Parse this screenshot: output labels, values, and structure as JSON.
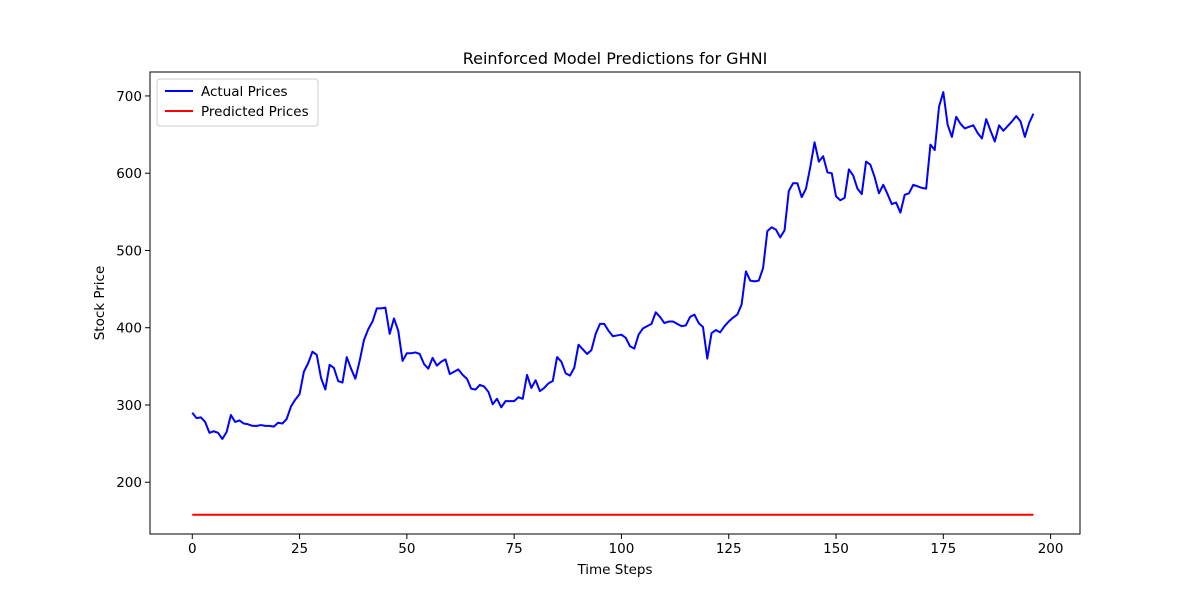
{
  "chart_data": {
    "type": "line",
    "title": "Reinforced Model Predictions for GHNI",
    "xlabel": "Time Steps",
    "ylabel": "Stock Price",
    "xlim": [
      -9.85,
      206.85
    ],
    "ylim": [
      133,
      731
    ],
    "xticks": [
      0,
      25,
      50,
      75,
      100,
      125,
      150,
      175,
      200
    ],
    "yticks": [
      200,
      300,
      400,
      500,
      600,
      700
    ],
    "grid": false,
    "legend": {
      "placement": "top-left",
      "entries": [
        "Actual Prices",
        "Predicted Prices"
      ]
    },
    "series": [
      {
        "name": "Actual Prices",
        "color": "#0000ff",
        "x_start": 0,
        "values": [
          290,
          283,
          284,
          278,
          264,
          266,
          264,
          256,
          265,
          287,
          278,
          280,
          276,
          275,
          273,
          273,
          274,
          273,
          273,
          272,
          277,
          276,
          282,
          298,
          307,
          314,
          343,
          354,
          369,
          365,
          335,
          320,
          352,
          348,
          331,
          329,
          362,
          347,
          334,
          357,
          384,
          398,
          408,
          425,
          425,
          426,
          392,
          412,
          396,
          357,
          367,
          367,
          368,
          366,
          353,
          347,
          361,
          351,
          356,
          359,
          340,
          343,
          346,
          339,
          334,
          321,
          320,
          326,
          324,
          317,
          301,
          308,
          297,
          305,
          305,
          305,
          310,
          308,
          339,
          322,
          332,
          318,
          322,
          328,
          331,
          362,
          356,
          341,
          338,
          348,
          378,
          372,
          366,
          371,
          392,
          405,
          405,
          396,
          389,
          390,
          391,
          387,
          376,
          373,
          391,
          399,
          402,
          405,
          420,
          414,
          406,
          408,
          408,
          405,
          402,
          403,
          414,
          417,
          406,
          401,
          360,
          393,
          397,
          394,
          402,
          408,
          413,
          417,
          430,
          473,
          461,
          460,
          461,
          477,
          525,
          530,
          527,
          517,
          526,
          577,
          587,
          587,
          569,
          580,
          608,
          640,
          615,
          622,
          601,
          600,
          570,
          565,
          568,
          605,
          597,
          580,
          573,
          615,
          611,
          595,
          574,
          585,
          573,
          560,
          562,
          549,
          572,
          574,
          585,
          583,
          581,
          580,
          637,
          630,
          686,
          705,
          663,
          647,
          673,
          664,
          658,
          660,
          662,
          652,
          645,
          670,
          655,
          641,
          662,
          655,
          661,
          667,
          674,
          667,
          647,
          665,
          677
        ]
      },
      {
        "name": "Predicted Prices",
        "color": "#ff0000",
        "x": [
          0,
          196
        ],
        "values": [
          158,
          158
        ]
      }
    ]
  }
}
